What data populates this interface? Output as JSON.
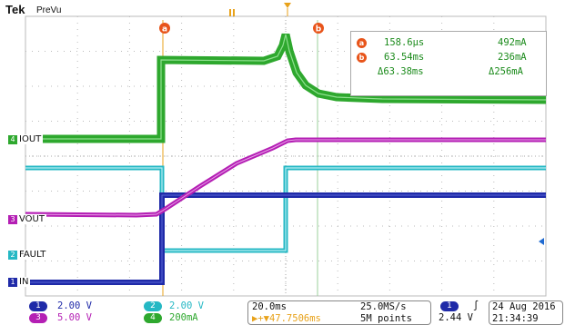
{
  "header": {
    "brand": "Tek",
    "mode": "PreVu"
  },
  "cursors": {
    "a_label": "a",
    "b_label": "b"
  },
  "readout": {
    "row_a": {
      "icon": "a",
      "time": "158.6µs",
      "value": "492mA"
    },
    "row_b": {
      "icon": "b",
      "time": "63.54ms",
      "value": "236mA"
    },
    "delta": {
      "time": "Δ63.38ms",
      "value": "Δ256mA"
    }
  },
  "channels": {
    "ch4": {
      "number": "4",
      "name": "IOUT",
      "color": "#2ea82e"
    },
    "ch3": {
      "number": "3",
      "name": "VOUT",
      "color": "#b41fb4"
    },
    "ch2": {
      "number": "2",
      "name": "FAULT",
      "color": "#25b8c4"
    },
    "ch1": {
      "number": "1",
      "name": "IN",
      "color": "#1f2aa8"
    }
  },
  "status": {
    "ch1_chip": "1",
    "ch1_scale": "2.00 V",
    "ch2_chip": "2",
    "ch2_scale": "2.00 V",
    "ch3_chip": "3",
    "ch3_scale": "5.00 V",
    "ch4_chip": "4",
    "ch4_scale": "200mA",
    "timebase": "20.0ms",
    "sample_rate": "25.0MS/s",
    "trigger_pos": "▶+▼47.7506ms",
    "record": "5M points",
    "trig_chip": "1",
    "trig_slope": "∫",
    "trig_level": "2.44 V",
    "date": "24 Aug 2016",
    "time": "21:34:39"
  }
}
